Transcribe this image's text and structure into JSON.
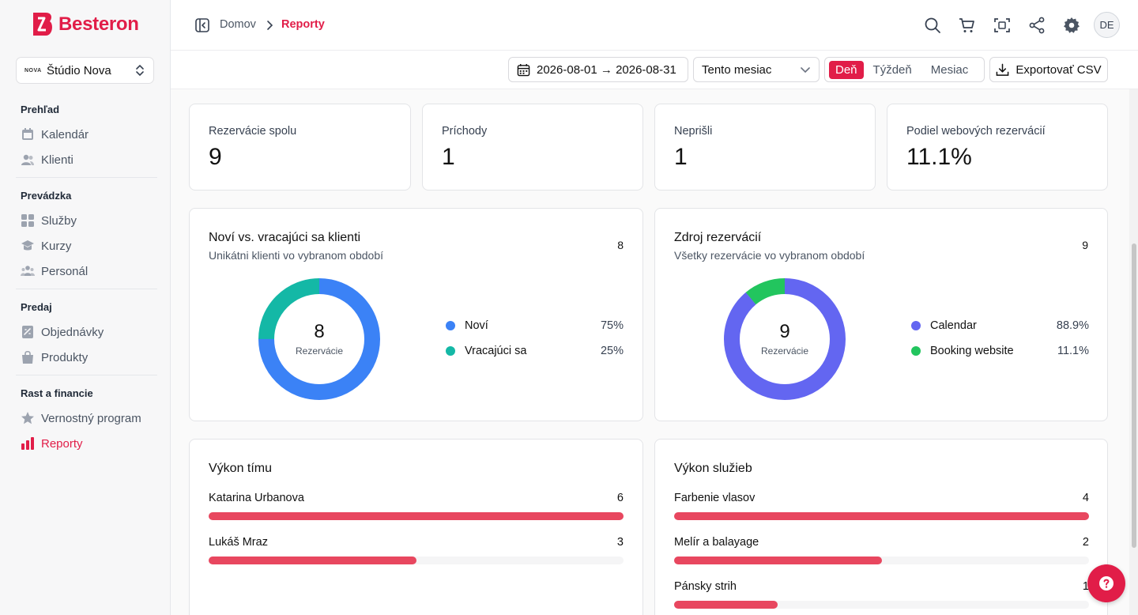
{
  "brand": {
    "name": "Besteron",
    "color": "#e11d48"
  },
  "studio": {
    "logo_text": "NOVA",
    "name": "Štúdio Nova"
  },
  "sidebar": {
    "sections": [
      {
        "title": "Prehľad",
        "items": [
          {
            "label": "Kalendár",
            "icon": "calendar-icon"
          },
          {
            "label": "Klienti",
            "icon": "users-icon"
          }
        ]
      },
      {
        "title": "Prevádzka",
        "items": [
          {
            "label": "Služby",
            "icon": "grid-icon"
          },
          {
            "label": "Kurzy",
            "icon": "graduation-cap-icon"
          },
          {
            "label": "Personál",
            "icon": "team-icon"
          }
        ]
      },
      {
        "title": "Predaj",
        "items": [
          {
            "label": "Objednávky",
            "icon": "receipt-icon"
          },
          {
            "label": "Produkty",
            "icon": "shopping-bag-icon"
          }
        ]
      },
      {
        "title": "Rast a financie",
        "items": [
          {
            "label": "Vernostný program",
            "icon": "star-icon"
          },
          {
            "label": "Reporty",
            "icon": "bar-chart-icon",
            "active": true
          }
        ]
      }
    ]
  },
  "breadcrumb": {
    "home": "Domov",
    "current": "Reporty"
  },
  "user": {
    "initials": "DE"
  },
  "filters": {
    "date_range": "2026-08-01 → 2026-08-31",
    "period": "Tento mesiac",
    "granularity": [
      {
        "label": "Deň",
        "active": true
      },
      {
        "label": "Týždeň",
        "active": false
      },
      {
        "label": "Mesiac",
        "active": false
      }
    ],
    "export_label": "Exportovať CSV"
  },
  "kpis": [
    {
      "label": "Rezervácie spolu",
      "value": "9"
    },
    {
      "label": "Príchody",
      "value": "1"
    },
    {
      "label": "Neprišli",
      "value": "1"
    },
    {
      "label": "Podiel webových rezervácií",
      "value": "11.1%"
    }
  ],
  "clients_chart": {
    "title": "Noví vs. vracajúci sa klienti",
    "subtitle": "Unikátni klienti vo vybranom období",
    "total": "8",
    "center_value": "8",
    "center_label": "Rezervácie",
    "chart_data": {
      "type": "pie",
      "categories": [
        "Noví",
        "Vracajúci sa"
      ],
      "values": [
        75,
        25
      ],
      "labels": [
        "75%",
        "25%"
      ],
      "colors": [
        "#3b82f6",
        "#14b8a6"
      ]
    }
  },
  "source_chart": {
    "title": "Zdroj rezervácií",
    "subtitle": "Všetky rezervácie vo vybranom období",
    "total": "9",
    "center_value": "9",
    "center_label": "Rezervácie",
    "chart_data": {
      "type": "pie",
      "categories": [
        "Calendar",
        "Booking website"
      ],
      "values": [
        88.9,
        11.1
      ],
      "labels": [
        "88.9%",
        "11.1%"
      ],
      "colors": [
        "#6366f1",
        "#22c55e"
      ]
    }
  },
  "team_perf": {
    "title": "Výkon tímu",
    "max": 6,
    "rows": [
      {
        "name": "Katarina Urbanova",
        "value": 6
      },
      {
        "name": "Lukáš Mraz",
        "value": 3
      }
    ]
  },
  "service_perf": {
    "title": "Výkon služieb",
    "max": 4,
    "rows": [
      {
        "name": "Farbenie vlasov",
        "value": 4
      },
      {
        "name": "Melír a balayage",
        "value": 2
      },
      {
        "name": "Pánsky strih",
        "value": 1
      }
    ]
  }
}
